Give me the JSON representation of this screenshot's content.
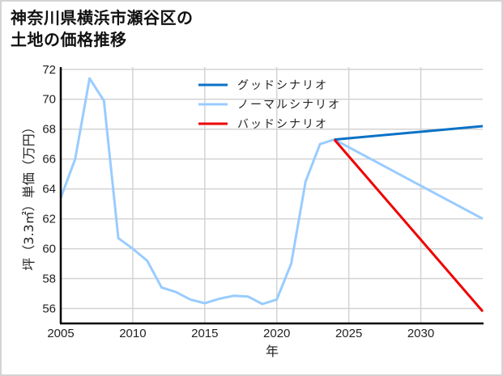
{
  "title_line1": "神奈川県横浜市瀬谷区の",
  "title_line2": "土地の価格推移",
  "chart_data": {
    "type": "line",
    "title": "神奈川県横浜市瀬谷区の土地の価格推移",
    "xlabel": "年",
    "ylabel": "坪（3.3㎡）単価（万円）",
    "xlim": [
      2005,
      2034.3
    ],
    "ylim": [
      55.0,
      72.15
    ],
    "x_ticks": [
      2005,
      2010,
      2015,
      2020,
      2025,
      2030
    ],
    "y_ticks": [
      56,
      58,
      60,
      62,
      64,
      66,
      68,
      70,
      72
    ],
    "grid": true,
    "legend_position": "upper center",
    "series": [
      {
        "name": "グッドシナリオ",
        "color": "#0a72c6",
        "x": [
          2024,
          2034.3
        ],
        "values": [
          67.3,
          68.2
        ]
      },
      {
        "name": "ノーマルシナリオ",
        "color": "#99ccff",
        "x": [
          2005,
          2006,
          2007,
          2008,
          2009,
          2010,
          2011,
          2012,
          2013,
          2014,
          2015,
          2016,
          2017,
          2018,
          2019,
          2020,
          2021,
          2022,
          2023,
          2024,
          2034.3
        ],
        "values": [
          63.4,
          66.0,
          71.4,
          69.9,
          60.7,
          60.0,
          59.2,
          57.4,
          57.1,
          56.6,
          56.35,
          56.65,
          56.85,
          56.8,
          56.3,
          56.6,
          59.0,
          64.5,
          67.0,
          67.3,
          62.0
        ]
      },
      {
        "name": "バッドシナリオ",
        "color": "#ee0000",
        "x": [
          2024,
          2034.3
        ],
        "values": [
          67.3,
          55.8
        ]
      }
    ]
  },
  "colors": {
    "grid": "#d3d3d3",
    "axis": "#000000",
    "frame": "#d4d4d4"
  }
}
